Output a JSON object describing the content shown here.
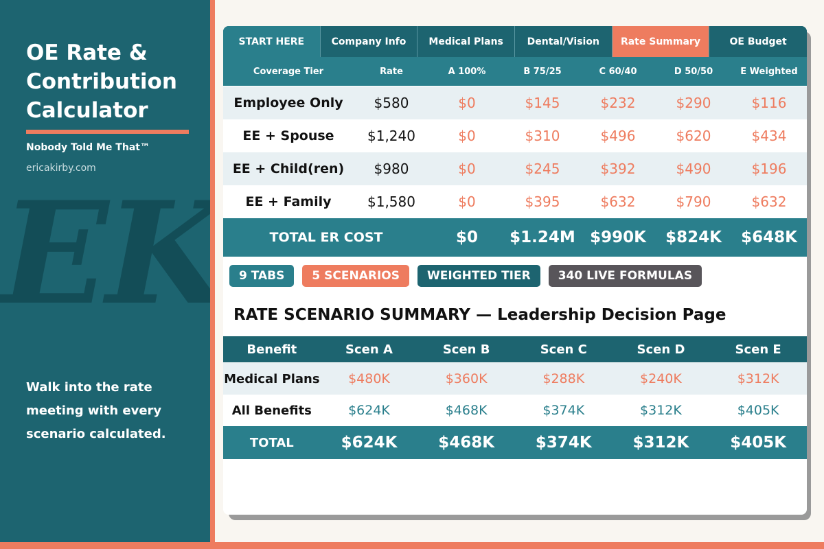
{
  "sidebar": {
    "title": "OE Rate &\nContribution\nCalculator",
    "tagline": "Nobody Told Me That™",
    "url": "ericakirby.com",
    "monogram": "EK",
    "pitch": "Walk into the rate\nmeeting with every\nscenario calculated."
  },
  "colors": {
    "teal_dark": "#1d6470",
    "teal": "#2a7f8c",
    "coral": "#ee7c5f",
    "grey": "#58555a"
  },
  "tabs": [
    {
      "label": "START HERE"
    },
    {
      "label": "Company Info"
    },
    {
      "label": "Medical Plans"
    },
    {
      "label": "Dental/Vision"
    },
    {
      "label": "Rate Summary",
      "active": true
    },
    {
      "label": "OE Budget"
    }
  ],
  "rate_table": {
    "headers": [
      "Coverage Tier",
      "Rate",
      "A  100%",
      "B  75/25",
      "C  60/40",
      "D  50/50",
      "E  Weighted"
    ],
    "rows": [
      {
        "tier": "Employee Only",
        "rate": "$580",
        "a": "$0",
        "b": "$145",
        "c": "$232",
        "d": "$290",
        "e": "$116"
      },
      {
        "tier": "EE + Spouse",
        "rate": "$1,240",
        "a": "$0",
        "b": "$310",
        "c": "$496",
        "d": "$620",
        "e": "$434"
      },
      {
        "tier": "EE + Child(ren)",
        "rate": "$980",
        "a": "$0",
        "b": "$245",
        "c": "$392",
        "d": "$490",
        "e": "$196"
      },
      {
        "tier": "EE + Family",
        "rate": "$1,580",
        "a": "$0",
        "b": "$395",
        "c": "$632",
        "d": "$790",
        "e": "$632"
      }
    ],
    "total": {
      "label": "TOTAL ER COST",
      "a": "$0",
      "b": "$1.24M",
      "c": "$990K",
      "d": "$824K",
      "e": "$648K"
    }
  },
  "badges": [
    {
      "label": "9 TABS",
      "color": "#2a7f8c"
    },
    {
      "label": "5 SCENARIOS",
      "color": "#ee7c5f"
    },
    {
      "label": "WEIGHTED TIER",
      "color": "#1d6470"
    },
    {
      "label": "340 LIVE FORMULAS",
      "color": "#58555a"
    }
  ],
  "summary": {
    "title": "RATE SCENARIO SUMMARY — Leadership Decision Page",
    "headers": [
      "Benefit",
      "Scen A",
      "Scen B",
      "Scen C",
      "Scen D",
      "Scen E"
    ],
    "rows": [
      {
        "label": "Medical Plans",
        "values": [
          "$480K",
          "$360K",
          "$288K",
          "$240K",
          "$312K"
        ]
      },
      {
        "label": "All Benefits",
        "values": [
          "$624K",
          "$468K",
          "$374K",
          "$312K",
          "$405K"
        ]
      }
    ],
    "total": {
      "label": "TOTAL",
      "values": [
        "$624K",
        "$468K",
        "$374K",
        "$312K",
        "$405K"
      ]
    }
  }
}
